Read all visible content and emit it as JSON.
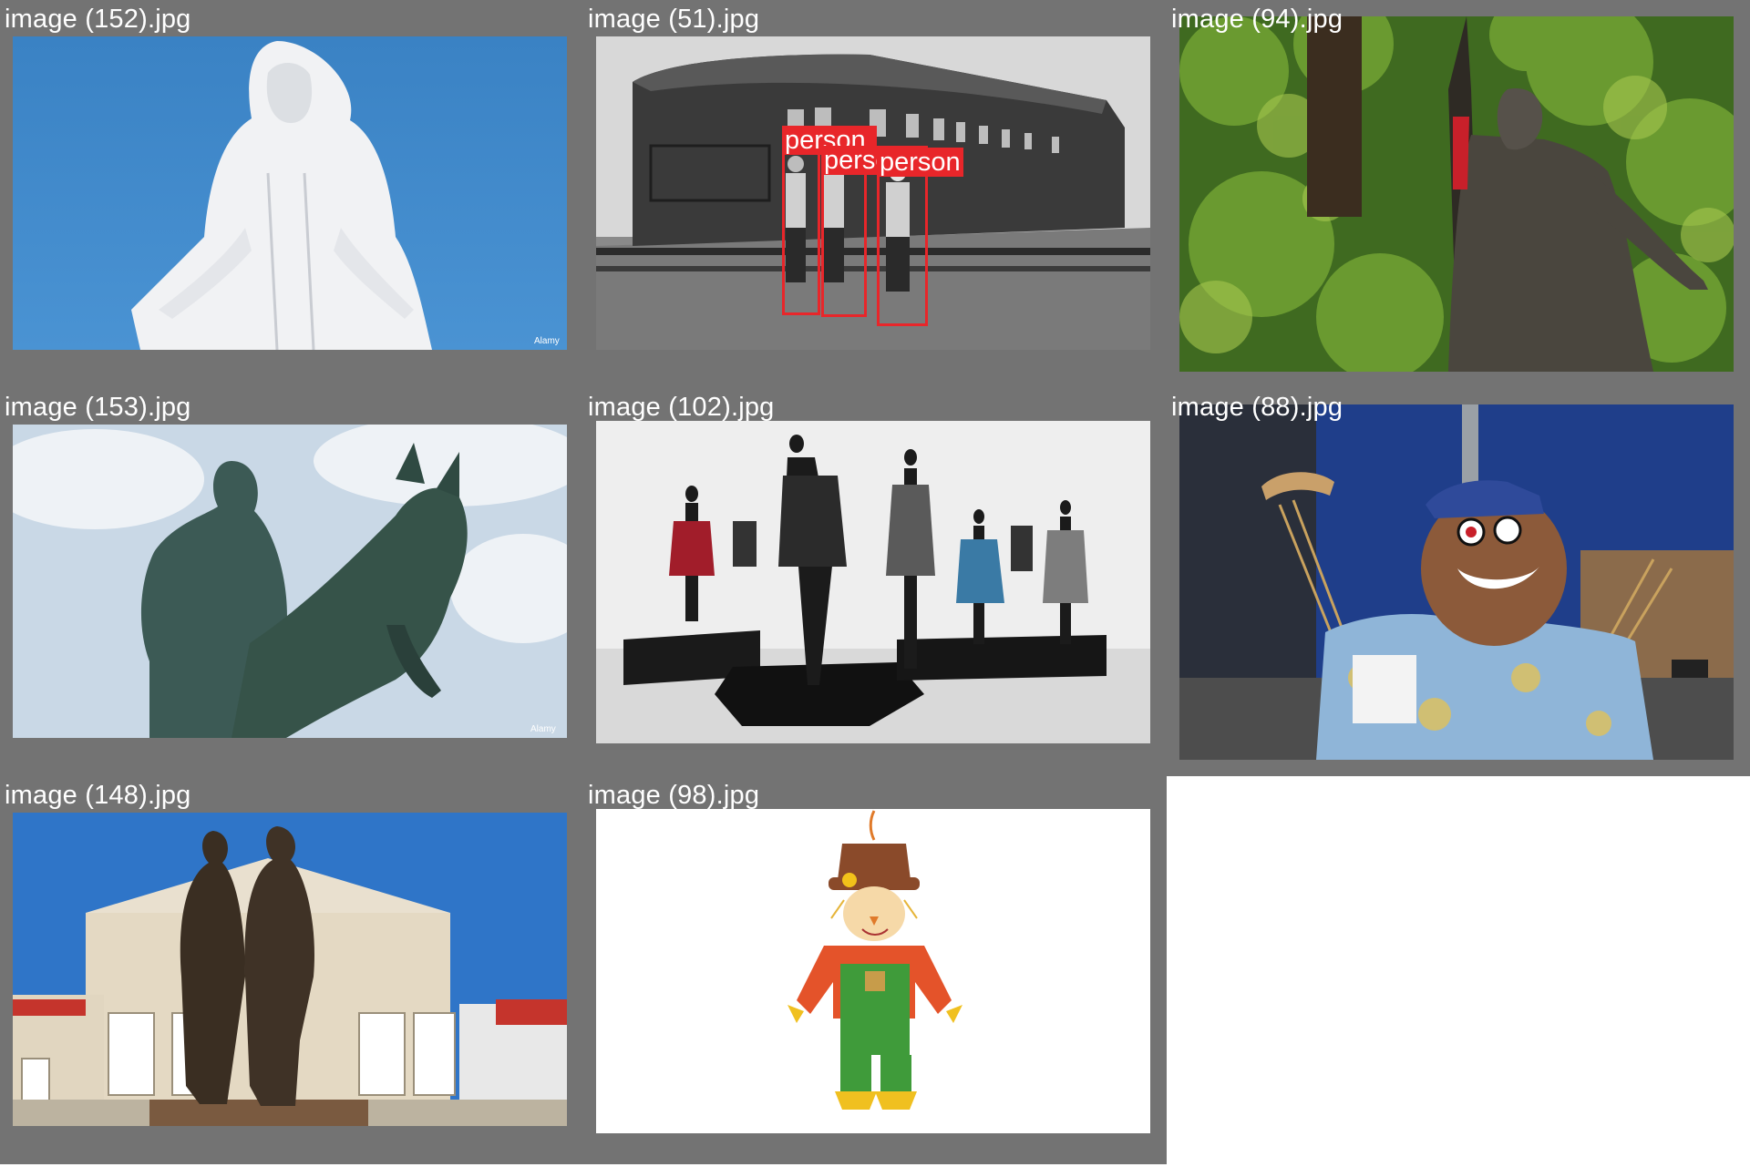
{
  "tiles": [
    {
      "filename": "image (152).jpg",
      "watermark": "Alamy"
    },
    {
      "filename": "image (51).jpg",
      "detections": [
        {
          "label": "person"
        },
        {
          "label": "person"
        },
        {
          "label": "person"
        }
      ]
    },
    {
      "filename": "image (94).jpg"
    },
    {
      "filename": "image (153).jpg",
      "watermark": "Alamy"
    },
    {
      "filename": "image (102).jpg"
    },
    {
      "filename": "image (88).jpg"
    },
    {
      "filename": "image (148).jpg"
    },
    {
      "filename": "image (98).jpg"
    }
  ],
  "colors": {
    "tile_bg": "#737373",
    "detection": "#e8262a",
    "page_bg": "#ffffff"
  }
}
